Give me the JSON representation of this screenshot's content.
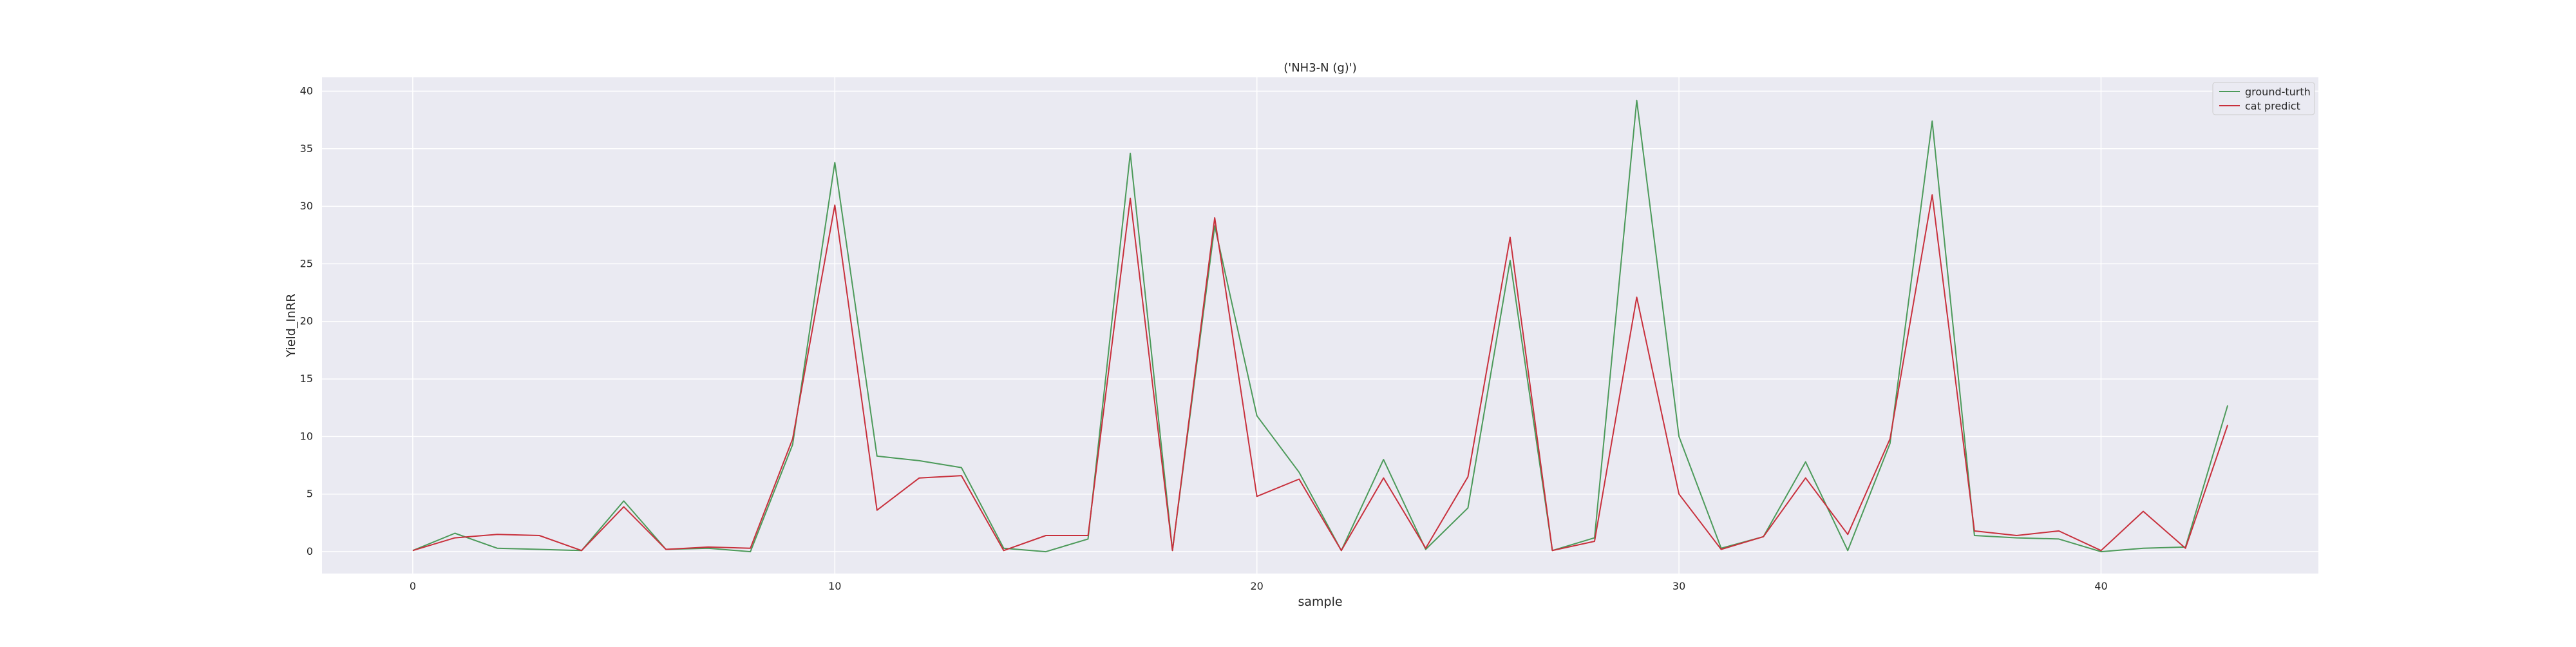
{
  "chart_data": {
    "type": "line",
    "title": "('NH3-N (g)')",
    "xlabel": "sample",
    "ylabel": "Yield_InRR",
    "xlim": [
      -2.15,
      45.15
    ],
    "ylim": [
      -1.9,
      41.2
    ],
    "xticks": [
      0,
      10,
      20,
      30,
      40
    ],
    "yticks": [
      0,
      5,
      10,
      15,
      20,
      25,
      30,
      35,
      40
    ],
    "grid": true,
    "legend_position": "top-right",
    "x": [
      0,
      1,
      2,
      3,
      4,
      5,
      6,
      7,
      8,
      9,
      10,
      11,
      12,
      13,
      14,
      15,
      16,
      17,
      18,
      19,
      20,
      21,
      22,
      23,
      24,
      25,
      26,
      27,
      28,
      29,
      30,
      31,
      32,
      33,
      34,
      35,
      36,
      37,
      38,
      39,
      40,
      41,
      42,
      43
    ],
    "series": [
      {
        "name": "ground-turth",
        "color": "#4c9a5a",
        "values": [
          0.1,
          1.6,
          0.3,
          0.2,
          0.1,
          4.4,
          0.2,
          0.3,
          0.0,
          9.3,
          33.8,
          8.3,
          7.9,
          7.3,
          0.3,
          0.0,
          1.1,
          34.6,
          0.1,
          28.3,
          11.8,
          6.9,
          0.1,
          8.0,
          0.2,
          3.8,
          25.3,
          0.1,
          1.2,
          39.2,
          10.0,
          0.3,
          1.3,
          7.8,
          0.1,
          9.4,
          37.4,
          1.4,
          1.2,
          1.1,
          0.0,
          0.3,
          0.4,
          12.7
        ]
      },
      {
        "name": "cat predict",
        "color": "#c8303c",
        "values": [
          0.1,
          1.2,
          1.5,
          1.4,
          0.1,
          3.9,
          0.2,
          0.4,
          0.3,
          9.8,
          30.1,
          3.6,
          6.4,
          6.6,
          0.1,
          1.4,
          1.4,
          30.7,
          0.1,
          29.0,
          4.8,
          6.3,
          0.1,
          6.4,
          0.3,
          6.5,
          27.3,
          0.1,
          0.9,
          22.1,
          5.0,
          0.2,
          1.3,
          6.4,
          1.5,
          9.8,
          31.0,
          1.8,
          1.4,
          1.8,
          0.1,
          3.5,
          0.3,
          11.0
        ]
      }
    ]
  }
}
